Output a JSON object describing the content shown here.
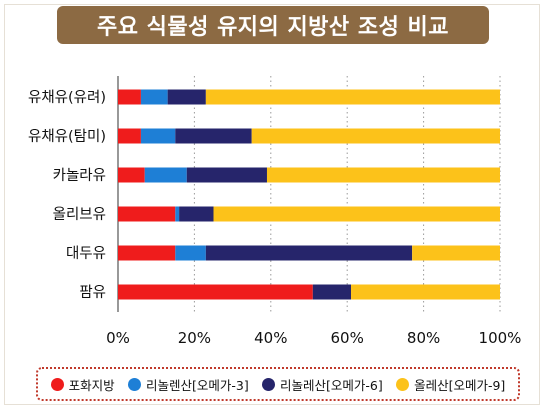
{
  "chart_data": {
    "type": "bar",
    "orientation": "horizontal",
    "stacked": true,
    "title": "주요 식물성 유지의 지방산 조성 비교",
    "categories": [
      "유채유(유려)",
      "유채유(탐미)",
      "카놀라유",
      "올리브유",
      "대두유",
      "팜유"
    ],
    "series": [
      {
        "name": "포화지방",
        "color": "#ef1c1c",
        "values": [
          6,
          6,
          7,
          15,
          15,
          51
        ]
      },
      {
        "name": "리놀렌산[오메가-3]",
        "color": "#1e7fd6",
        "values": [
          7,
          9,
          11,
          1,
          8,
          0
        ]
      },
      {
        "name": "리놀레산[오메가-6]",
        "color": "#26256b",
        "values": [
          10,
          20,
          21,
          9,
          54,
          10
        ]
      },
      {
        "name": "올레산[오메가-9]",
        "color": "#fcc21a",
        "values": [
          77,
          65,
          61,
          75,
          23,
          39
        ]
      }
    ],
    "x_ticks": [
      "0%",
      "20%",
      "40%",
      "60%",
      "80%",
      "100%"
    ],
    "xlim": [
      0,
      100
    ],
    "grid": true,
    "legend_position": "bottom"
  }
}
